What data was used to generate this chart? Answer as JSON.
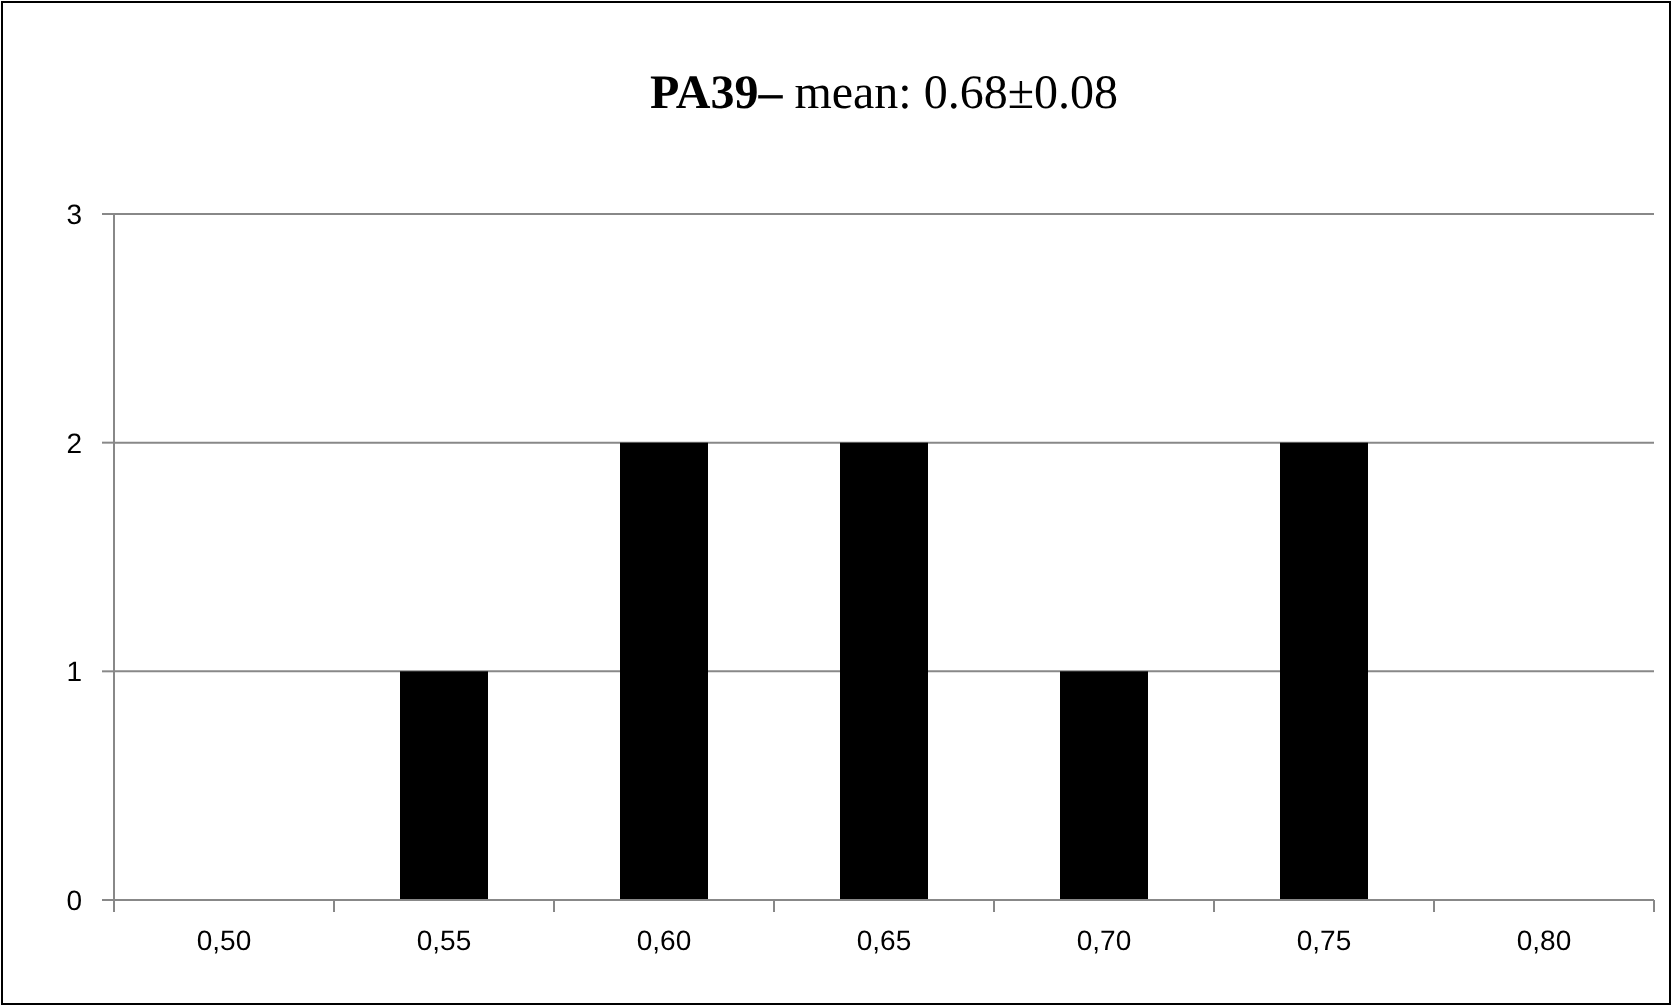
{
  "chart_data": {
    "type": "bar",
    "title": "PA39– mean: 0.68±0.08",
    "categories": [
      "0,50",
      "0,55",
      "0,60",
      "0,65",
      "0,70",
      "0,75",
      "0,80"
    ],
    "values": [
      0,
      1,
      2,
      2,
      1,
      2,
      0
    ],
    "color": "#000000",
    "ylim": [
      0,
      3
    ],
    "yticks": [
      0,
      1,
      2,
      3
    ],
    "grid": "y"
  }
}
